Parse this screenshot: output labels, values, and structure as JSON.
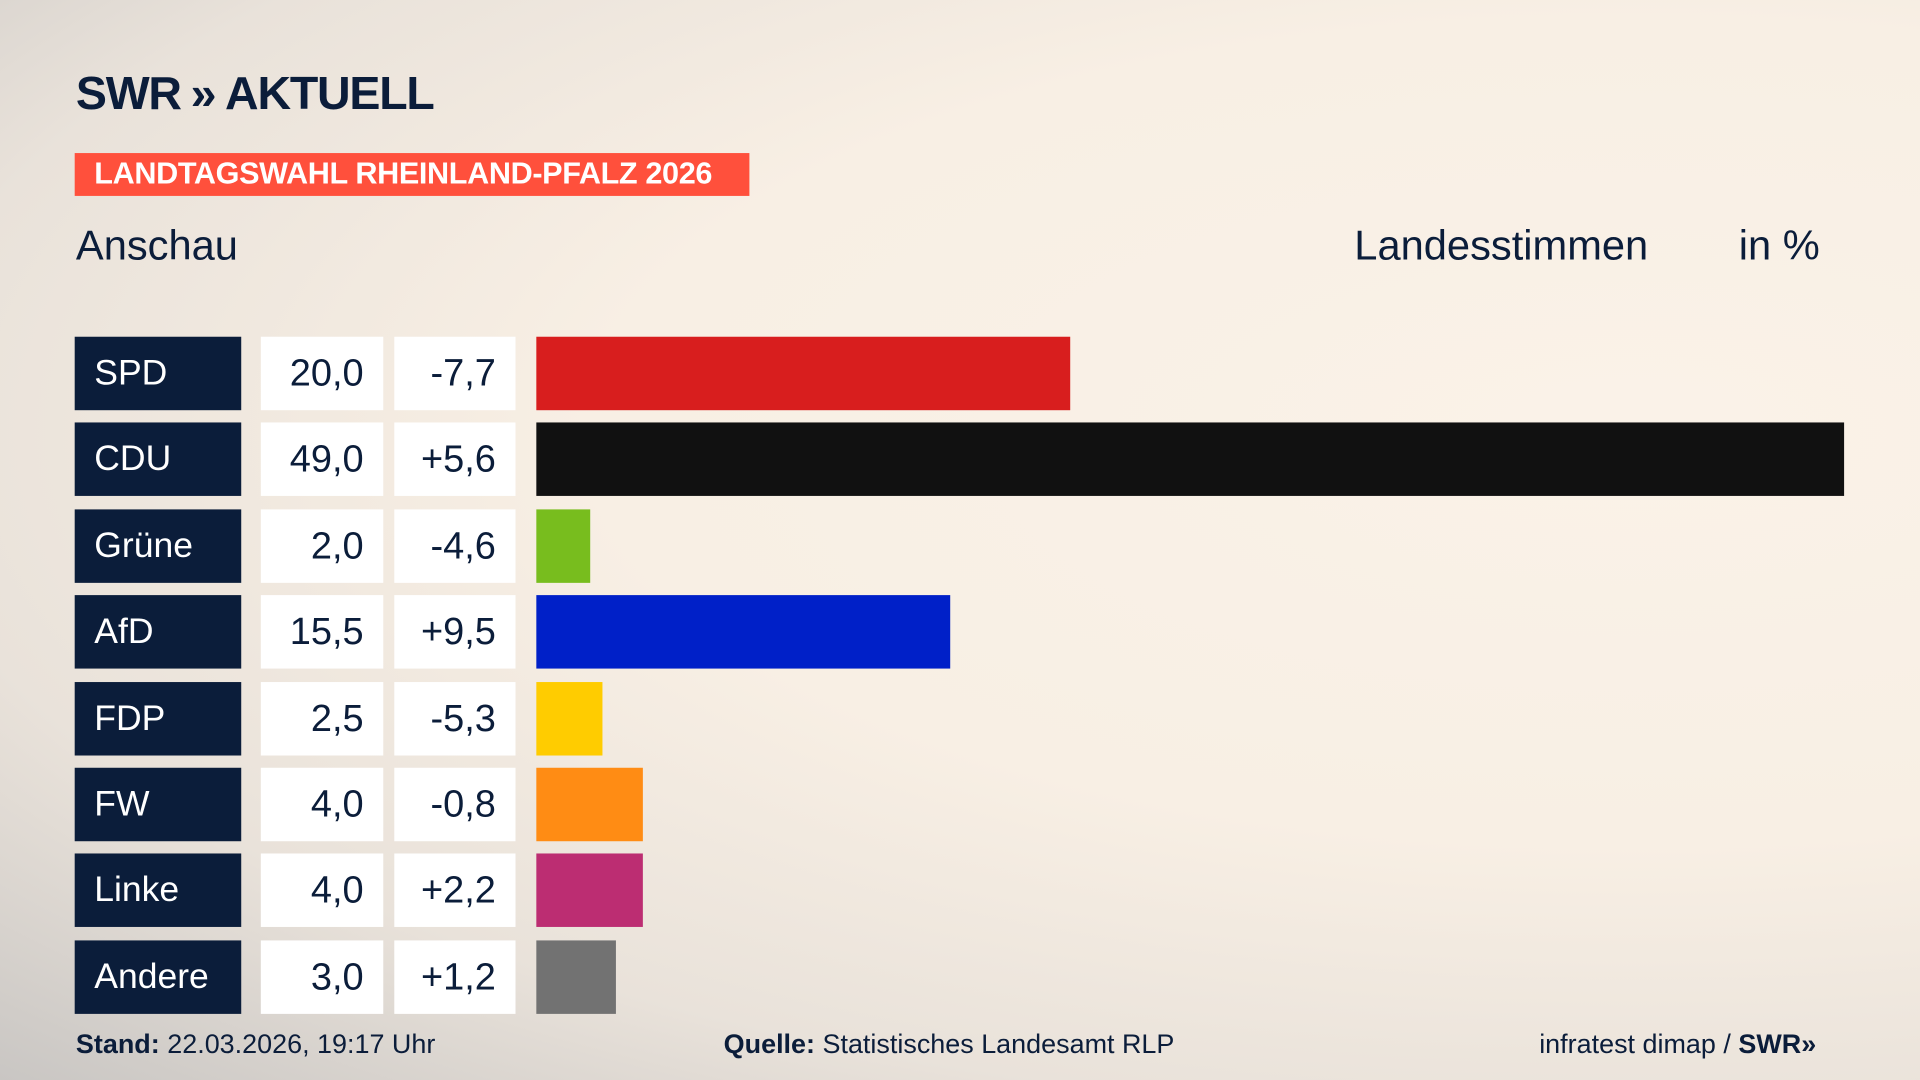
{
  "brand": {
    "logo": "SWR",
    "logo_suffix": "AKTUELL",
    "banner": "LANDTAGSWAHL RHEINLAND-PFALZ 2026"
  },
  "header": {
    "region": "Anschau",
    "measure": "Landesstimmen",
    "unit": "in %"
  },
  "chart_data": {
    "type": "bar",
    "orientation": "horizontal",
    "xlim": [
      0,
      49
    ],
    "categories": [
      "SPD",
      "CDU",
      "Grüne",
      "AfD",
      "FDP",
      "FW",
      "Linke",
      "Andere"
    ],
    "values": [
      20.0,
      49.0,
      2.0,
      15.5,
      2.5,
      4.0,
      4.0,
      3.0
    ],
    "values_label": [
      "20,0",
      "49,0",
      "2,0",
      "15,5",
      "2,5",
      "4,0",
      "4,0",
      "3,0"
    ],
    "diff_label": [
      "-7,7",
      "+5,6",
      "-4,6",
      "+9,5",
      "-5,3",
      "-0,8",
      "+2,2",
      "+1,2"
    ],
    "colors": [
      "#d81e1e",
      "#111111",
      "#78bd1e",
      "#0020c8",
      "#ffcc00",
      "#ff8c14",
      "#bc2d72",
      "#727272"
    ]
  },
  "footer": {
    "stand_label": "Stand:",
    "stand_value": "22.03.2026, 19:17 Uhr",
    "source_label": "Quelle:",
    "source_value": "Statistisches Landesamt RLP",
    "credit": "infratest dimap /",
    "credit_brand": "SWR"
  }
}
